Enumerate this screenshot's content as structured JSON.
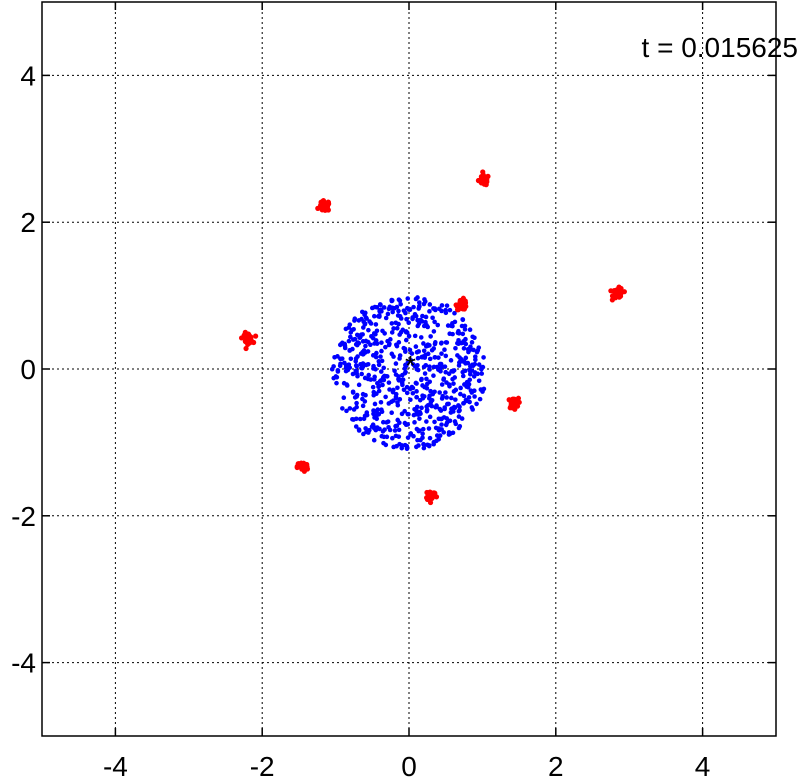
{
  "chart_data": {
    "type": "scatter",
    "title": "",
    "xlabel": "",
    "ylabel": "",
    "xlim": [
      -5,
      5
    ],
    "ylim": [
      -5,
      5
    ],
    "x_ticks": [
      -4,
      -2,
      0,
      2,
      4
    ],
    "y_ticks": [
      -4,
      -2,
      0,
      2,
      4
    ],
    "x_tick_labels": [
      "-4",
      "-2",
      "0",
      "2",
      "4"
    ],
    "y_tick_labels": [
      "-4",
      "-2",
      "0",
      "2",
      "4"
    ],
    "grid": true,
    "annotation": "t = 0.015625",
    "center_marker": {
      "x": 0.02,
      "y": 0.1,
      "symbol": "*"
    },
    "series": [
      {
        "color": "#0000ff",
        "shape": "disk",
        "center": [
          0.0,
          -0.05
        ],
        "radius": 1.05,
        "count": 700
      },
      {
        "color": "#ff0000",
        "shape": "clusters",
        "count_per_cluster": 40,
        "spread": 0.1,
        "clusters": [
          [
            1.02,
            2.57
          ],
          [
            -1.15,
            2.22
          ],
          [
            2.85,
            1.03
          ],
          [
            0.72,
            0.88
          ],
          [
            -2.2,
            0.42
          ],
          [
            1.42,
            -0.47
          ],
          [
            -1.45,
            -1.33
          ],
          [
            0.3,
            -1.72
          ]
        ]
      }
    ]
  }
}
